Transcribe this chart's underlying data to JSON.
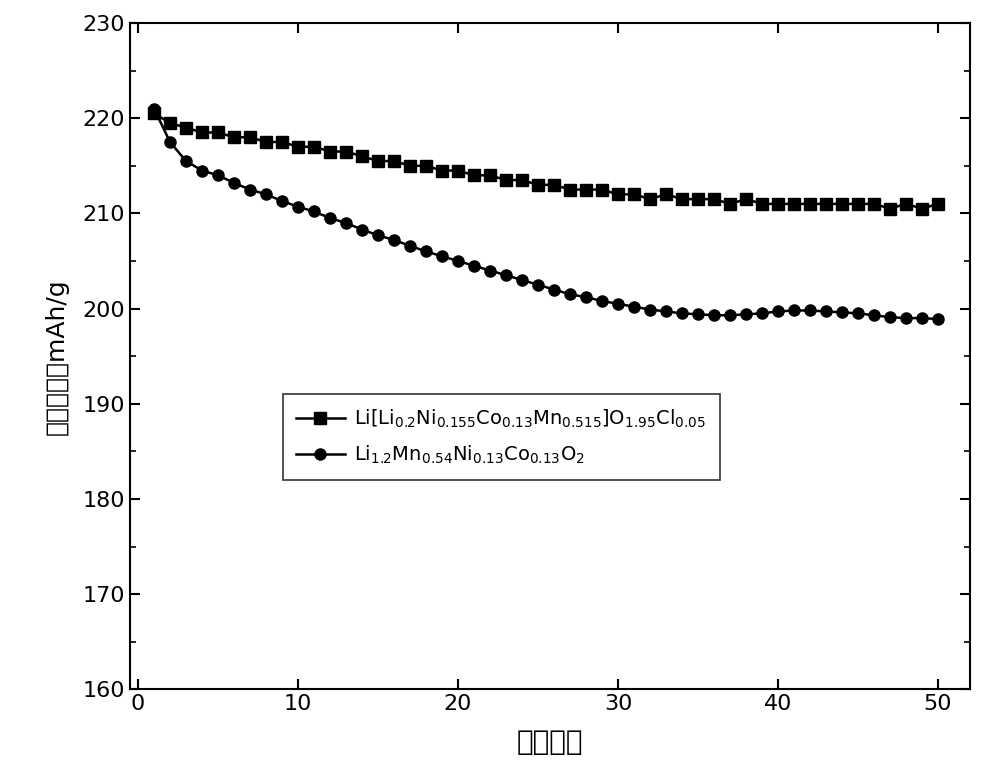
{
  "title": "",
  "xlabel": "循环次数",
  "ylabel": "放电比容量mAh/g",
  "xlim": [
    -0.5,
    52
  ],
  "ylim": [
    160,
    230
  ],
  "ytick_major": [
    160,
    170,
    180,
    190,
    200,
    210,
    220,
    230
  ],
  "ytick_minor": [
    165,
    175,
    185,
    195,
    205,
    215,
    225
  ],
  "xticks": [
    0,
    10,
    20,
    30,
    40,
    50
  ],
  "xlabel_fontsize": 20,
  "ylabel_fontsize": 18,
  "tick_fontsize": 16,
  "legend_fontsize": 14,
  "series1_x": [
    1,
    2,
    3,
    4,
    5,
    6,
    7,
    8,
    9,
    10,
    11,
    12,
    13,
    14,
    15,
    16,
    17,
    18,
    19,
    20,
    21,
    22,
    23,
    24,
    25,
    26,
    27,
    28,
    29,
    30,
    31,
    32,
    33,
    34,
    35,
    36,
    37,
    38,
    39,
    40,
    41,
    42,
    43,
    44,
    45,
    46,
    47,
    48,
    49,
    50
  ],
  "series1_y": [
    220.5,
    219.5,
    219.0,
    218.5,
    218.5,
    218.0,
    218.0,
    217.5,
    217.5,
    217.0,
    217.0,
    216.5,
    216.5,
    216.0,
    215.5,
    215.5,
    215.0,
    215.0,
    214.5,
    214.5,
    214.0,
    214.0,
    213.5,
    213.5,
    213.0,
    213.0,
    212.5,
    212.5,
    212.5,
    212.0,
    212.0,
    211.5,
    212.0,
    211.5,
    211.5,
    211.5,
    211.0,
    211.5,
    211.0,
    211.0,
    211.0,
    211.0,
    211.0,
    211.0,
    211.0,
    211.0,
    210.5,
    211.0,
    210.5,
    211.0
  ],
  "series2_x": [
    1,
    2,
    3,
    4,
    5,
    6,
    7,
    8,
    9,
    10,
    11,
    12,
    13,
    14,
    15,
    16,
    17,
    18,
    19,
    20,
    21,
    22,
    23,
    24,
    25,
    26,
    27,
    28,
    29,
    30,
    31,
    32,
    33,
    34,
    35,
    36,
    37,
    38,
    39,
    40,
    41,
    42,
    43,
    44,
    45,
    46,
    47,
    48,
    49,
    50
  ],
  "series2_y": [
    221.0,
    217.5,
    215.5,
    214.5,
    214.0,
    213.2,
    212.5,
    212.0,
    211.3,
    210.7,
    210.2,
    209.5,
    209.0,
    208.3,
    207.7,
    207.2,
    206.6,
    206.0,
    205.5,
    205.0,
    204.5,
    204.0,
    203.5,
    203.0,
    202.5,
    202.0,
    201.5,
    201.2,
    200.8,
    200.5,
    200.2,
    199.9,
    199.7,
    199.5,
    199.4,
    199.3,
    199.3,
    199.4,
    199.5,
    199.7,
    199.8,
    199.8,
    199.7,
    199.6,
    199.5,
    199.3,
    199.1,
    199.0,
    199.0,
    198.9
  ],
  "line_color": "#000000",
  "marker1": "s",
  "marker2": "o",
  "markersize": 8,
  "linewidth": 1.8,
  "background_color": "#ffffff",
  "legend1": "Li[Li$_{0.2}$Ni$_{0.155}$Co$_{0.13}$Mn$_{0.515}$]O$_{1.95}$Cl$_{0.05}$",
  "legend2": "Li$_{1.2}$Mn$_{0.54}$Ni$_{0.13}$Co$_{0.13}$O$_{2}$"
}
